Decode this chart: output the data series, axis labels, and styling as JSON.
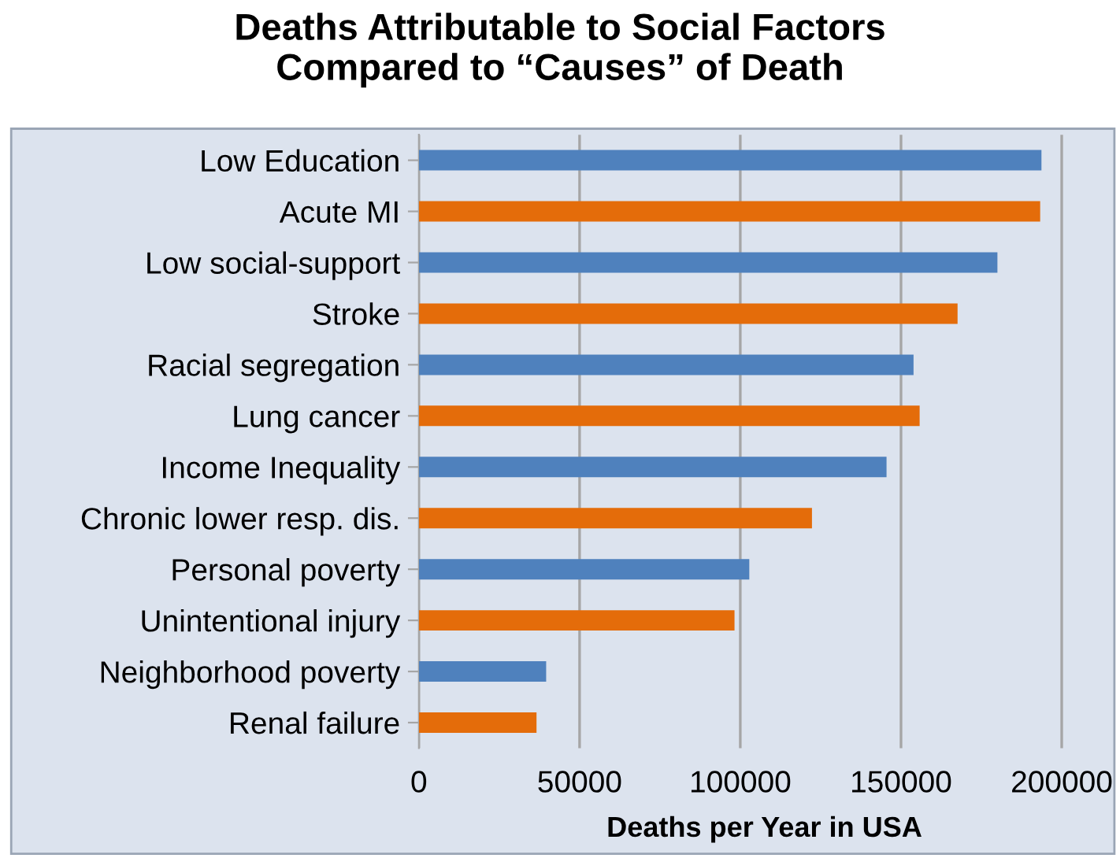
{
  "chart_data": {
    "type": "bar",
    "orientation": "horizontal",
    "title": "Deaths Attributable to Social Factors\nCompared to “Causes” of Death",
    "xlabel": "Deaths per Year in USA",
    "categories": [
      "Low Education",
      "Acute MI",
      "Low social-support",
      "Stroke",
      "Racial segregation",
      "Lung cancer",
      "Income Inequality",
      "Chronic lower resp. dis.",
      "Personal poverty",
      "Unintentional injury",
      "Neighborhood poverty",
      "Renal failure"
    ],
    "values": [
      193700,
      193300,
      180000,
      167600,
      153900,
      155800,
      145500,
      122300,
      102800,
      98200,
      39600,
      36600
    ],
    "colors": [
      "#4f81bd",
      "#e46c0a",
      "#4f81bd",
      "#e46c0a",
      "#4f81bd",
      "#e46c0a",
      "#4f81bd",
      "#e46c0a",
      "#4f81bd",
      "#e46c0a",
      "#4f81bd",
      "#e46c0a"
    ],
    "xlim": [
      0,
      215000
    ],
    "xticks": [
      0,
      50000,
      100000,
      150000,
      200000
    ],
    "grid": "x",
    "legend": false
  }
}
